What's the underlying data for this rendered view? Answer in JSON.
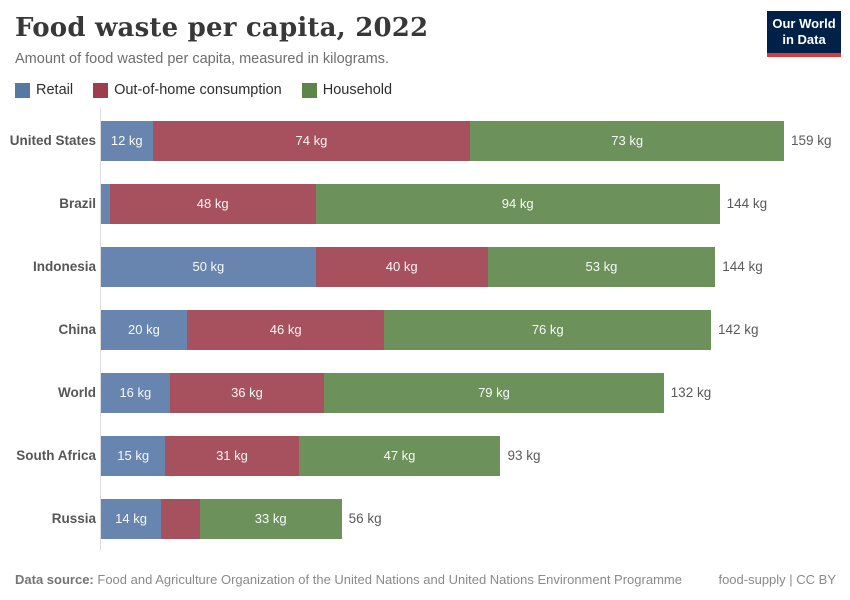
{
  "header": {
    "title": "Food waste per capita, 2022",
    "subtitle": "Amount of food wasted per capita, measured in kilograms.",
    "logo": {
      "line1": "Our World",
      "line2": "in Data",
      "bg_color": "#002147",
      "accent_color": "#d73c3c"
    }
  },
  "chart_data": {
    "type": "bar",
    "stacked": true,
    "orientation": "horizontal",
    "title": "Food waste per capita, 2022",
    "xlabel": "",
    "ylabel": "",
    "value_unit": "kg",
    "xlim": [
      0,
      159
    ],
    "grid": false,
    "legend_position": "top",
    "categories": [
      "United States",
      "Brazil",
      "Indonesia",
      "China",
      "World",
      "South Africa",
      "Russia"
    ],
    "series": [
      {
        "name": "Retail",
        "color": "#5678a5",
        "values": [
          12,
          2,
          50,
          20,
          16,
          15,
          14
        ],
        "bar_labels": [
          "12 kg",
          "",
          "50 kg",
          "20 kg",
          "16 kg",
          "15 kg",
          "14 kg"
        ]
      },
      {
        "name": "Out-of-home consumption",
        "color": "#9d3e4c",
        "values": [
          74,
          48,
          40,
          46,
          36,
          31,
          9
        ],
        "bar_labels": [
          "74 kg",
          "48 kg",
          "40 kg",
          "46 kg",
          "36 kg",
          "31 kg",
          ""
        ]
      },
      {
        "name": "Household",
        "color": "#5d8549",
        "values": [
          73,
          94,
          53,
          76,
          79,
          47,
          33
        ],
        "bar_labels": [
          "73 kg",
          "94 kg",
          "53 kg",
          "76 kg",
          "79 kg",
          "47 kg",
          "33 kg"
        ]
      }
    ],
    "total_labels": [
      "159 kg",
      "144 kg",
      "144 kg",
      "142 kg",
      "132 kg",
      "93 kg",
      "56 kg"
    ]
  },
  "footer": {
    "source_label": "Data source:",
    "source_text": "Food and Agriculture Organization of the United Nations and United Nations Environment Programme",
    "credit": "food-supply | CC BY"
  }
}
